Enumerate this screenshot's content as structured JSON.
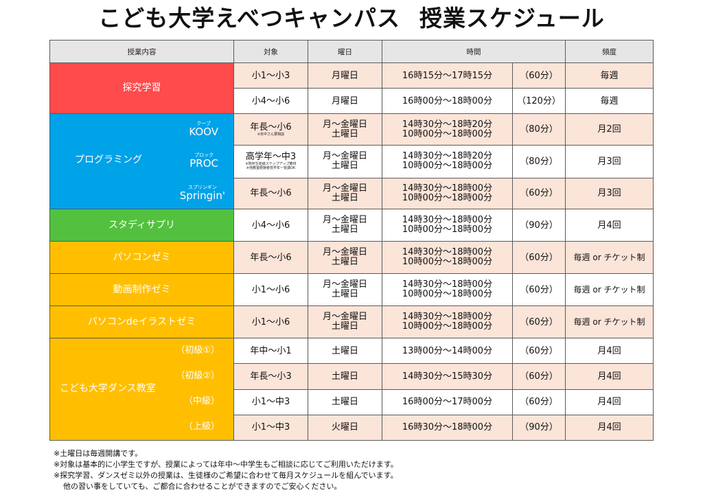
{
  "title_main": "こども大学えべつキャンパス",
  "title_sub": "授業スケジュール",
  "headers": {
    "content": "授業内容",
    "target": "対象",
    "day": "曜日",
    "time": "時間",
    "freq": "頻度"
  },
  "rows": [
    {
      "target": "小1～小3",
      "day": "月曜日",
      "time": "16時15分～17時15分",
      "dur": "（60分）",
      "freq": "毎週"
    },
    {
      "target": "小4～小6",
      "day": "月曜日",
      "time": "16時00分～18時00分",
      "dur": "（120分）",
      "freq": "毎週"
    },
    {
      "target": "年長～小6",
      "target_note": "※年中さん要相談",
      "day1": "月～金曜日",
      "day2": "土曜日",
      "time1": "14時30分～18時20分",
      "time2": "10時00分～18時00分",
      "dur": "（80分）",
      "freq": "月2回"
    },
    {
      "target": "高学年～中3",
      "target_note1": "※既存生徒様ステップアップ教材",
      "target_note2": "※他教室経験者低学年一受講OK",
      "day1": "月～金曜日",
      "day2": "土曜日",
      "time1": "14時30分～18時20分",
      "time2": "10時00分～18時00分",
      "dur": "（80分）",
      "freq": "月3回"
    },
    {
      "target": "年長～小6",
      "day1": "月～金曜日",
      "day2": "土曜日",
      "time1": "14時30分～18時00分",
      "time2": "10時00分～18時00分",
      "dur": "（60分）",
      "freq": "月3回"
    },
    {
      "target": "小4～小6",
      "day1": "月～金曜日",
      "day2": "土曜日",
      "time1": "14時30分～18時00分",
      "time2": "10時00分～18時00分",
      "dur": "（90分）",
      "freq": "月4回"
    },
    {
      "target": "年長～小6",
      "day1": "月～金曜日",
      "day2": "土曜日",
      "time1": "14時30分～18時00分",
      "time2": "10時00分～18時00分",
      "dur": "（60分）",
      "freq": "毎週 or チケット制"
    },
    {
      "target": "小1～小6",
      "day1": "月～金曜日",
      "day2": "土曜日",
      "time1": "14時30分～18時00分",
      "time2": "10時00分～18時00分",
      "dur": "（60分）",
      "freq": "毎週 or チケット制"
    },
    {
      "target": "小1～小6",
      "day1": "月～金曜日",
      "day2": "土曜日",
      "time1": "14時30分～18時00分",
      "time2": "10時00分～18時00分",
      "dur": "（60分）",
      "freq": "毎週 or チケット制"
    },
    {
      "target": "年中～小1",
      "day": "土曜日",
      "time": "13時00分～14時00分",
      "dur": "（60分）",
      "freq": "月4回"
    },
    {
      "target": "年長～小3",
      "day": "土曜日",
      "time": "14時30分～15時30分",
      "dur": "（60分）",
      "freq": "月4回"
    },
    {
      "target": "小1～中3",
      "day": "土曜日",
      "time": "16時00分～17時00分",
      "dur": "（60分）",
      "freq": "月4回"
    },
    {
      "target": "小1～中3",
      "day": "火曜日",
      "time": "16時30分～18時00分",
      "dur": "（90分）",
      "freq": "月4回"
    }
  ],
  "categories": {
    "tankyu": "探究学習",
    "programming": "プログラミング",
    "koov_ruby": "クーブ",
    "koov": "KOOV",
    "proc_ruby": "プロック",
    "proc": "PROC",
    "springin_ruby": "スプリンギン",
    "springin": "Springin'",
    "studysapuri": "スタディサプリ",
    "pc_semi": "パソコンゼミ",
    "douga": "動画制作ゼミ",
    "illust": "パソコンdeイラストゼミ",
    "dance": "こども大学ダンス教室",
    "dance_levels": [
      "（初級①）",
      "（初級②）",
      "（中級）",
      "（上級）"
    ]
  },
  "colors": {
    "red": "#ff4b4b",
    "blue": "#00a2e8",
    "green": "#53c13f",
    "orange": "#ffbf00",
    "pink": "#fbe4d8",
    "header": "#e6e6e6"
  },
  "notes": [
    "※土曜日は毎週開講です。",
    "※対象は基本的に小学生ですが、授業によっては年中～中学生もご相談に応じてご利用いただけます。",
    "※探究学習、ダンスゼミ以外の授業は、生徒様のご希望に合わせて毎月スケジュールを組んでいます。",
    "他の習い事をしていても、ご都合に合わせることができますのでご安心ください。"
  ]
}
